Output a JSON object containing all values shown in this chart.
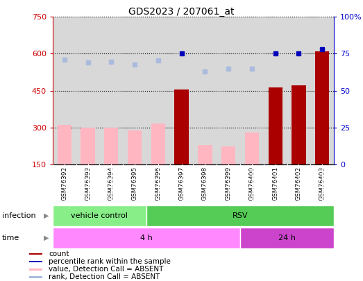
{
  "title": "GDS2023 / 207061_at",
  "samples": [
    "GSM76392",
    "GSM76393",
    "GSM76394",
    "GSM76395",
    "GSM76396",
    "GSM76397",
    "GSM76398",
    "GSM76399",
    "GSM76400",
    "GSM76401",
    "GSM76402",
    "GSM76403"
  ],
  "count_values": [
    null,
    null,
    null,
    null,
    null,
    455,
    null,
    null,
    null,
    462,
    472,
    610
  ],
  "count_absent_values": [
    310,
    298,
    300,
    288,
    315,
    null,
    228,
    222,
    280,
    null,
    null,
    null
  ],
  "rank_values_pct": [
    null,
    null,
    null,
    null,
    null,
    75,
    null,
    null,
    null,
    75.2,
    75,
    78
  ],
  "rank_absent_values_pct": [
    71,
    69,
    69.5,
    67.5,
    70.3,
    null,
    63,
    65,
    64.7,
    null,
    null,
    null
  ],
  "ylim_left": [
    150,
    750
  ],
  "ylim_right": [
    0,
    100
  ],
  "yticks_left": [
    150,
    300,
    450,
    600,
    750
  ],
  "yticks_right": [
    0,
    25,
    50,
    75,
    100
  ],
  "infection_groups": [
    {
      "label": "vehicle control",
      "start": 0,
      "end": 4,
      "color": "#88EE88"
    },
    {
      "label": "RSV",
      "start": 4,
      "end": 12,
      "color": "#55CC55"
    }
  ],
  "time_groups": [
    {
      "label": "4 h",
      "start": 0,
      "end": 8,
      "color": "#FF88FF"
    },
    {
      "label": "24 h",
      "start": 8,
      "end": 12,
      "color": "#CC44CC"
    }
  ],
  "bar_color_present": "#AA0000",
  "bar_color_absent": "#FFB6C1",
  "rank_color_present": "#0000BB",
  "rank_color_absent": "#AABBDD",
  "grid_color": "black",
  "bg_color": "#D8D8D8",
  "left_axis_color": "#CC0000",
  "right_axis_color": "#0000CC",
  "legend_items": [
    {
      "color": "#AA0000",
      "label": "count"
    },
    {
      "color": "#0000BB",
      "label": "percentile rank within the sample"
    },
    {
      "color": "#FFB6C1",
      "label": "value, Detection Call = ABSENT"
    },
    {
      "color": "#AABBDD",
      "label": "rank, Detection Call = ABSENT"
    }
  ]
}
